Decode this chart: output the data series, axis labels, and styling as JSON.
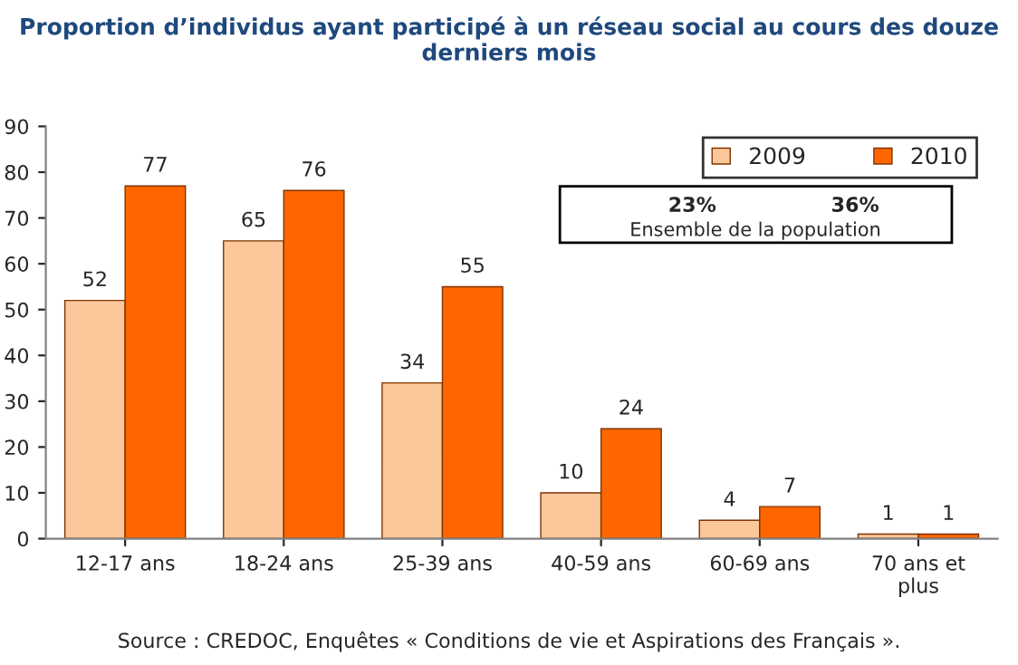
{
  "chart_data": {
    "type": "bar",
    "title": "Proportion d’individus ayant participé à un réseau social au cours des douze derniers mois",
    "categories": [
      "12-17 ans",
      "18-24 ans",
      "25-39 ans",
      "40-59 ans",
      "60-69 ans",
      "70 ans et\nplus"
    ],
    "series": [
      {
        "name": "2009",
        "color": "#fcc89b",
        "values": [
          52,
          65,
          34,
          10,
          4,
          1
        ]
      },
      {
        "name": "2010",
        "color": "#ff6600",
        "values": [
          77,
          76,
          55,
          24,
          7,
          1
        ]
      }
    ],
    "ylim": [
      0,
      90
    ],
    "yticks": [
      0,
      10,
      20,
      30,
      40,
      50,
      60,
      70,
      80,
      90
    ],
    "grid": false,
    "legend": "top right",
    "data_labels": true,
    "annotations": [
      "23%",
      "36%",
      "Ensemble de la population",
      "Source : CREDOC, Enquêtes « Conditions de vie et Aspirations des Français »."
    ]
  }
}
